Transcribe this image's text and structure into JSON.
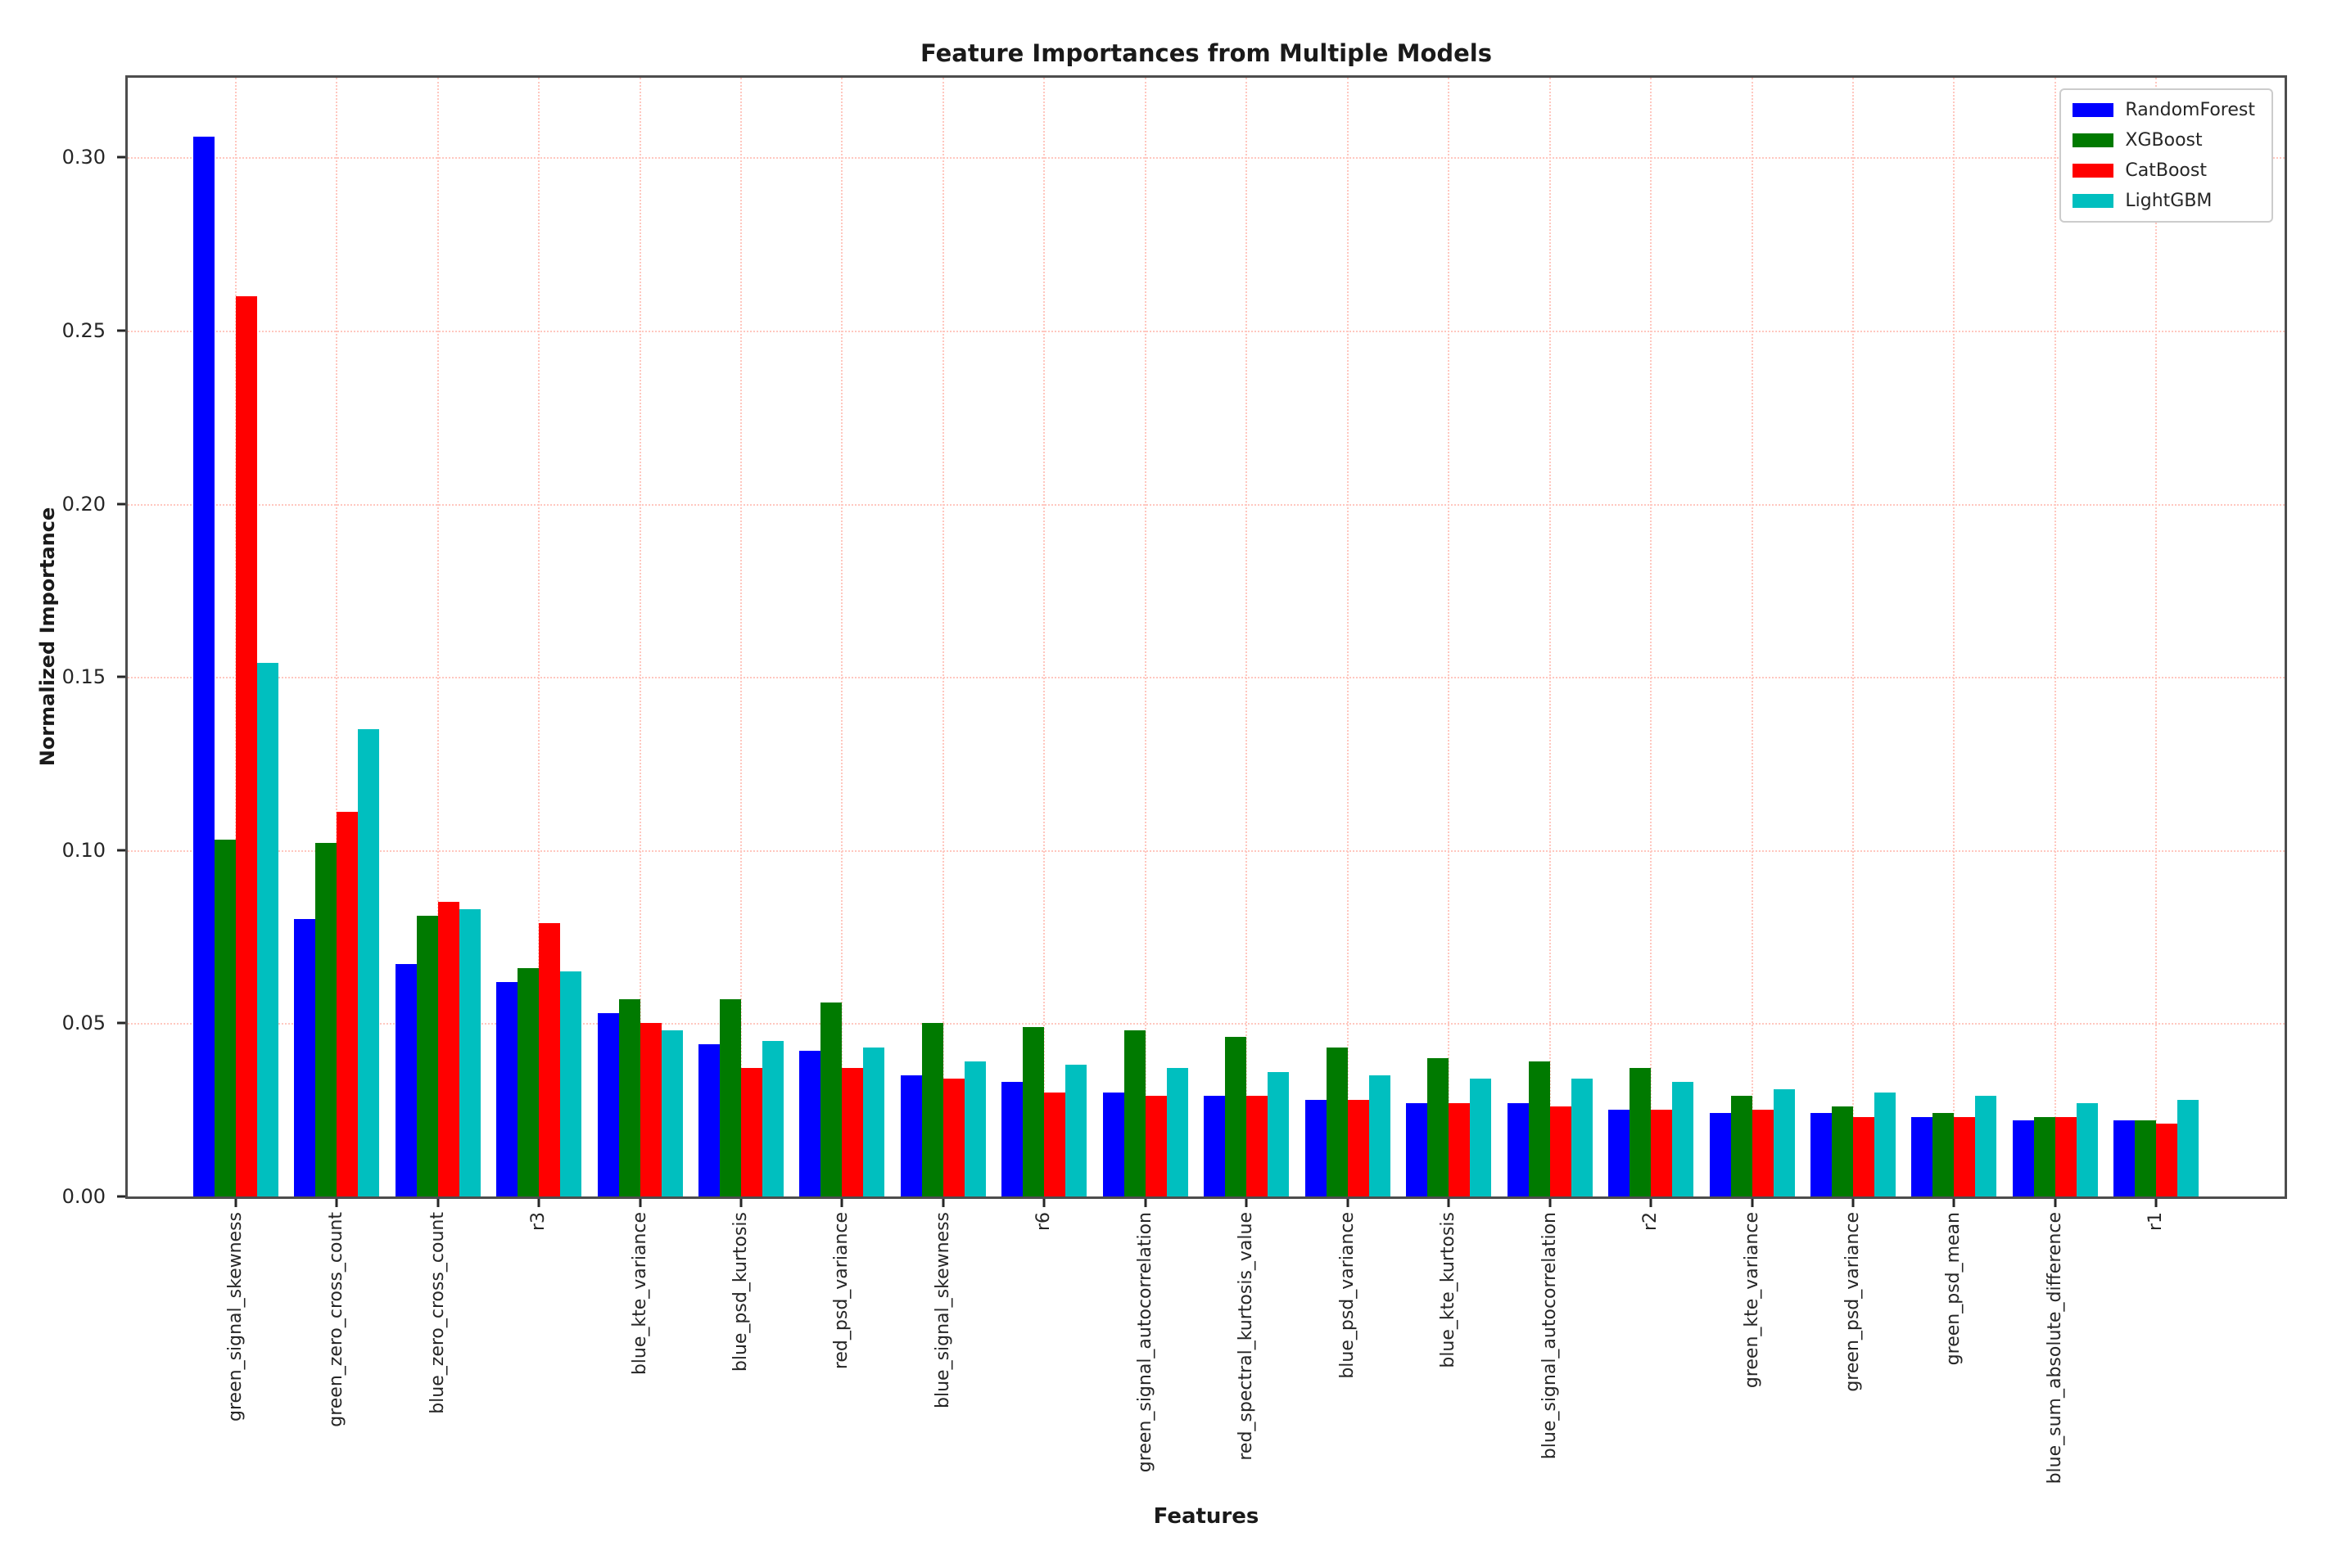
{
  "chart_data": {
    "type": "bar",
    "title": "Feature Importances from Multiple Models",
    "xlabel": "Features",
    "ylabel": "Normalized Importance",
    "ylim": [
      0,
      0.323
    ],
    "grid": "both axes, dotted light-red gridlines",
    "legend_position": "upper right",
    "ytick_labels": [
      "0.00",
      "0.05",
      "0.10",
      "0.15",
      "0.20",
      "0.25",
      "0.30"
    ],
    "ytick_values": [
      0.0,
      0.05,
      0.1,
      0.15,
      0.2,
      0.25,
      0.3
    ],
    "categories": [
      "green_signal_skewness",
      "green_zero_cross_count",
      "blue_zero_cross_count",
      "r3",
      "blue_kte_variance",
      "blue_psd_kurtosis",
      "red_psd_variance",
      "blue_signal_skewness",
      "r6",
      "green_signal_autocorrelation",
      "red_spectral_kurtosis_value",
      "blue_psd_variance",
      "blue_kte_kurtosis",
      "blue_signal_autocorrelation",
      "r2",
      "green_kte_variance",
      "green_psd_variance",
      "green_psd_mean",
      "blue_sum_absolute_difference",
      "r1"
    ],
    "series": [
      {
        "name": "RandomForest",
        "color": "#0000ff",
        "values": [
          0.306,
          0.08,
          0.067,
          0.062,
          0.053,
          0.044,
          0.042,
          0.035,
          0.033,
          0.03,
          0.029,
          0.028,
          0.027,
          0.027,
          0.025,
          0.024,
          0.024,
          0.023,
          0.022,
          0.022
        ]
      },
      {
        "name": "XGBoost",
        "color": "#007a00",
        "values": [
          0.103,
          0.102,
          0.081,
          0.066,
          0.057,
          0.057,
          0.056,
          0.05,
          0.049,
          0.048,
          0.046,
          0.043,
          0.04,
          0.039,
          0.037,
          0.029,
          0.026,
          0.024,
          0.023,
          0.022
        ]
      },
      {
        "name": "CatBoost",
        "color": "#ff0000",
        "values": [
          0.26,
          0.111,
          0.085,
          0.079,
          0.05,
          0.037,
          0.037,
          0.034,
          0.03,
          0.029,
          0.029,
          0.028,
          0.027,
          0.026,
          0.025,
          0.025,
          0.023,
          0.023,
          0.023,
          0.021
        ]
      },
      {
        "name": "LightGBM",
        "color": "#00bfbf",
        "values": [
          0.154,
          0.135,
          0.083,
          0.065,
          0.048,
          0.045,
          0.043,
          0.039,
          0.038,
          0.037,
          0.036,
          0.035,
          0.034,
          0.034,
          0.033,
          0.031,
          0.03,
          0.029,
          0.027,
          0.028
        ]
      }
    ],
    "colors": {
      "gridline": "#ffc7bf",
      "spine": "#4d4d4d",
      "tick": "#262626"
    }
  }
}
